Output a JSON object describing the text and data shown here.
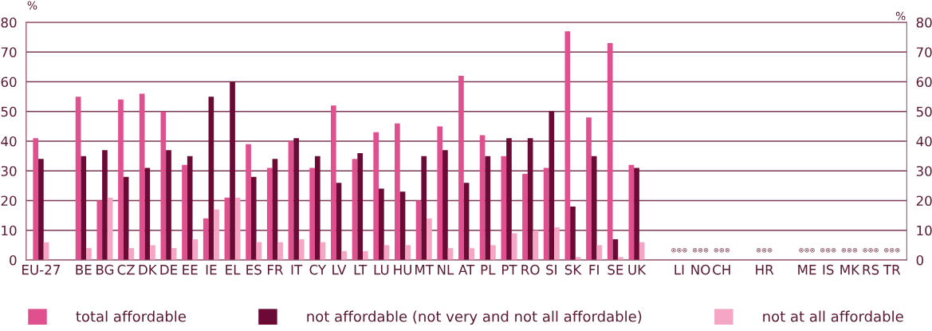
{
  "chart_data": {
    "type": "bar",
    "ylabel": "%",
    "y2label": "%",
    "categories": [
      "EU-27",
      null,
      "BE",
      "BG",
      "CZ",
      "DK",
      "DE",
      "EE",
      "IE",
      "EL",
      "ES",
      "FR",
      "IT",
      "CY",
      "LV",
      "LT",
      "LU",
      "HU",
      "MT",
      "NL",
      "AT",
      "PL",
      "PT",
      "RO",
      "SI",
      "SK",
      "FI",
      "SE",
      "UK",
      null,
      "LI",
      "NO",
      "CH",
      null,
      "HR",
      null,
      "ME",
      "IS",
      "MK",
      "RS",
      "TR"
    ],
    "series": [
      {
        "name": "total affordable",
        "color": "#e0508e",
        "values": [
          41,
          null,
          55,
          20,
          54,
          56,
          50,
          32,
          14,
          21,
          39,
          31,
          40,
          31,
          52,
          34,
          43,
          46,
          20,
          45,
          62,
          42,
          35,
          29,
          31,
          77,
          48,
          73,
          32,
          null,
          null,
          null,
          null,
          null,
          null,
          null,
          null,
          null,
          null,
          null,
          null
        ]
      },
      {
        "name": "not affordable (not very and not all affordable)",
        "color": "#6b0a35",
        "values": [
          34,
          null,
          35,
          37,
          28,
          31,
          37,
          35,
          55,
          60,
          28,
          34,
          41,
          35,
          26,
          36,
          24,
          23,
          35,
          37,
          26,
          35,
          41,
          41,
          50,
          18,
          35,
          7,
          31,
          null,
          null,
          null,
          null,
          null,
          null,
          null,
          null,
          null,
          null,
          null,
          null
        ]
      },
      {
        "name": "not at all affordable",
        "color": "#f4a6c4",
        "values": [
          6,
          null,
          4,
          21,
          4,
          5,
          4,
          7,
          17,
          21,
          6,
          6,
          7,
          6,
          3,
          3,
          5,
          5,
          14,
          4,
          4,
          5,
          9,
          10,
          11,
          1,
          5,
          1,
          6,
          null,
          null,
          null,
          null,
          null,
          null,
          null,
          null,
          null,
          null,
          null,
          null
        ]
      }
    ],
    "ylim": [
      0,
      80
    ],
    "yticks": [
      0,
      10,
      20,
      30,
      40,
      50,
      60,
      70,
      80
    ],
    "y2lim": [
      0,
      80
    ],
    "y2ticks": [
      0,
      10,
      20,
      30,
      40,
      50,
      60,
      70,
      80
    ],
    "grid": "y",
    "legend": "bottom",
    "annotations": [
      "⊗⊗⊗",
      "⊗⊗⊗",
      "⊗⊗⊗",
      "⊗⊗⊗",
      "⊗⊗⊗",
      "⊗⊗⊗",
      "⊗⊗⊗",
      "⊗⊗⊗",
      "⊗⊗⊗"
    ]
  }
}
